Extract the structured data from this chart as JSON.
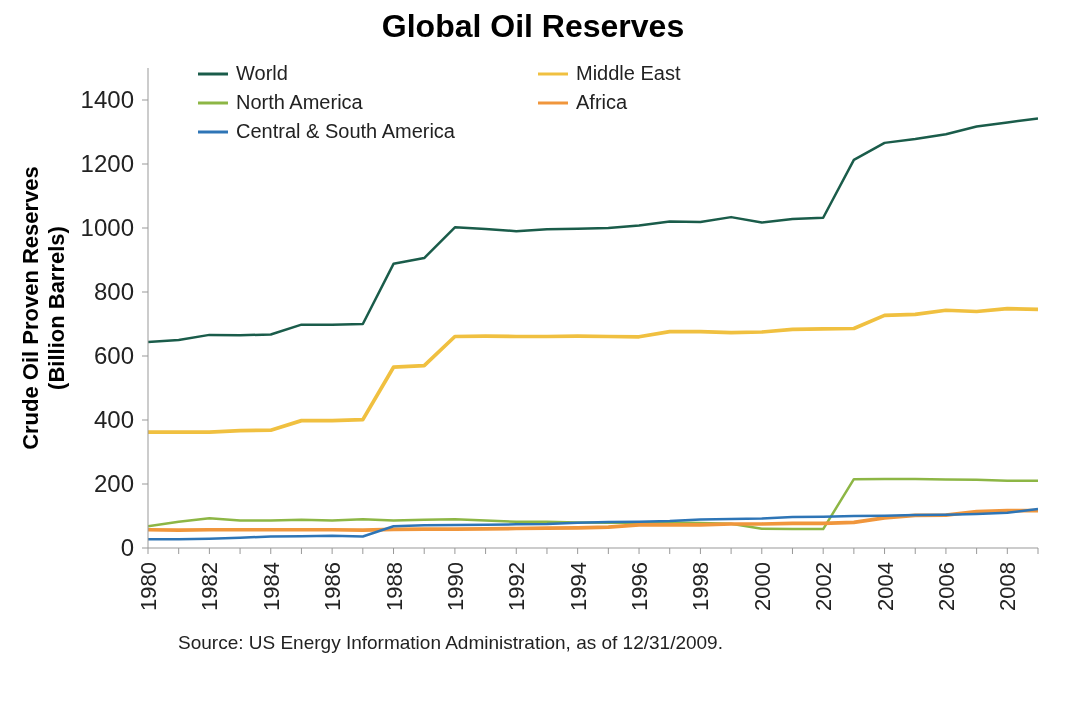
{
  "chart_data": {
    "type": "line",
    "title": "Global Oil Reserves",
    "ylabel": "Crude Oil Proven Reserves (Billion Barrels)",
    "x": [
      1980,
      1981,
      1982,
      1983,
      1984,
      1985,
      1986,
      1987,
      1988,
      1989,
      1990,
      1991,
      1992,
      1993,
      1994,
      1995,
      1996,
      1997,
      1998,
      1999,
      2000,
      2001,
      2002,
      2003,
      2004,
      2005,
      2006,
      2007,
      2008,
      2009
    ],
    "series": [
      {
        "name": "World",
        "color": "#1a5c4a",
        "values": [
          644,
          650,
          666,
          665,
          667,
          698,
          698,
          700,
          888,
          906,
          1002,
          997,
          990,
          996,
          998,
          1000,
          1008,
          1020,
          1019,
          1034,
          1017,
          1028,
          1032,
          1213,
          1266,
          1278,
          1293,
          1317,
          1330,
          1342
        ]
      },
      {
        "name": "Middle East",
        "color": "#f0c040",
        "values": [
          362,
          362,
          362,
          367,
          368,
          398,
          398,
          401,
          565,
          570,
          661,
          662,
          661,
          661,
          662,
          661,
          660,
          676,
          676,
          673,
          675,
          683,
          685,
          686,
          727,
          730,
          743,
          739,
          748,
          746
        ]
      },
      {
        "name": "North America",
        "color": "#8db645",
        "values": [
          68,
          82,
          93,
          86,
          86,
          88,
          86,
          90,
          86,
          88,
          90,
          86,
          82,
          82,
          80,
          79,
          79,
          80,
          78,
          76,
          60,
          59,
          59,
          215,
          216,
          216,
          214,
          213,
          210,
          210
        ]
      },
      {
        "name": "Africa",
        "color": "#f0963c",
        "values": [
          57,
          56,
          57,
          57,
          57,
          57,
          57,
          56,
          58,
          59,
          59,
          60,
          61,
          62,
          63,
          65,
          72,
          72,
          72,
          75,
          75,
          77,
          77,
          80,
          94,
          102,
          103,
          114,
          117,
          117
        ]
      },
      {
        "name": "Central & South America",
        "color": "#2e75b6",
        "values": [
          27,
          27,
          29,
          32,
          36,
          37,
          38,
          36,
          68,
          71,
          72,
          73,
          74,
          75,
          79,
          81,
          82,
          84,
          89,
          91,
          92,
          97,
          98,
          100,
          101,
          103,
          104,
          106,
          110,
          122
        ]
      }
    ],
    "xlim": [
      1980,
      2009
    ],
    "xticks": [
      1980,
      {
        "value": 1981,
        "label": null
      },
      1982,
      {
        "value": 1983,
        "label": null
      },
      1984,
      {
        "value": 1985,
        "label": null
      },
      1986,
      {
        "value": 1987,
        "label": null
      },
      1988,
      {
        "value": 1989,
        "label": null
      },
      1990,
      {
        "value": 1991,
        "label": null
      },
      1992,
      {
        "value": 1993,
        "label": null
      },
      1994,
      {
        "value": 1995,
        "label": null
      },
      1996,
      {
        "value": 1997,
        "label": null
      },
      1998,
      {
        "value": 1999,
        "label": null
      },
      2000,
      {
        "value": 2001,
        "label": null
      },
      2002,
      {
        "value": 2003,
        "label": null
      },
      2004,
      {
        "value": 2005,
        "label": null
      },
      2006,
      {
        "value": 2007,
        "label": null
      },
      2008,
      {
        "value": 2009,
        "label": null
      }
    ],
    "ylim": [
      0,
      1500
    ],
    "yticks": [
      0,
      200,
      400,
      600,
      800,
      1000,
      1200,
      1400
    ],
    "grid": false,
    "legend": "top left",
    "marker": "none",
    "line_style": "solid",
    "annotations": [
      "Source: US Energy Information Administration, as of 12/31/2009."
    ]
  }
}
